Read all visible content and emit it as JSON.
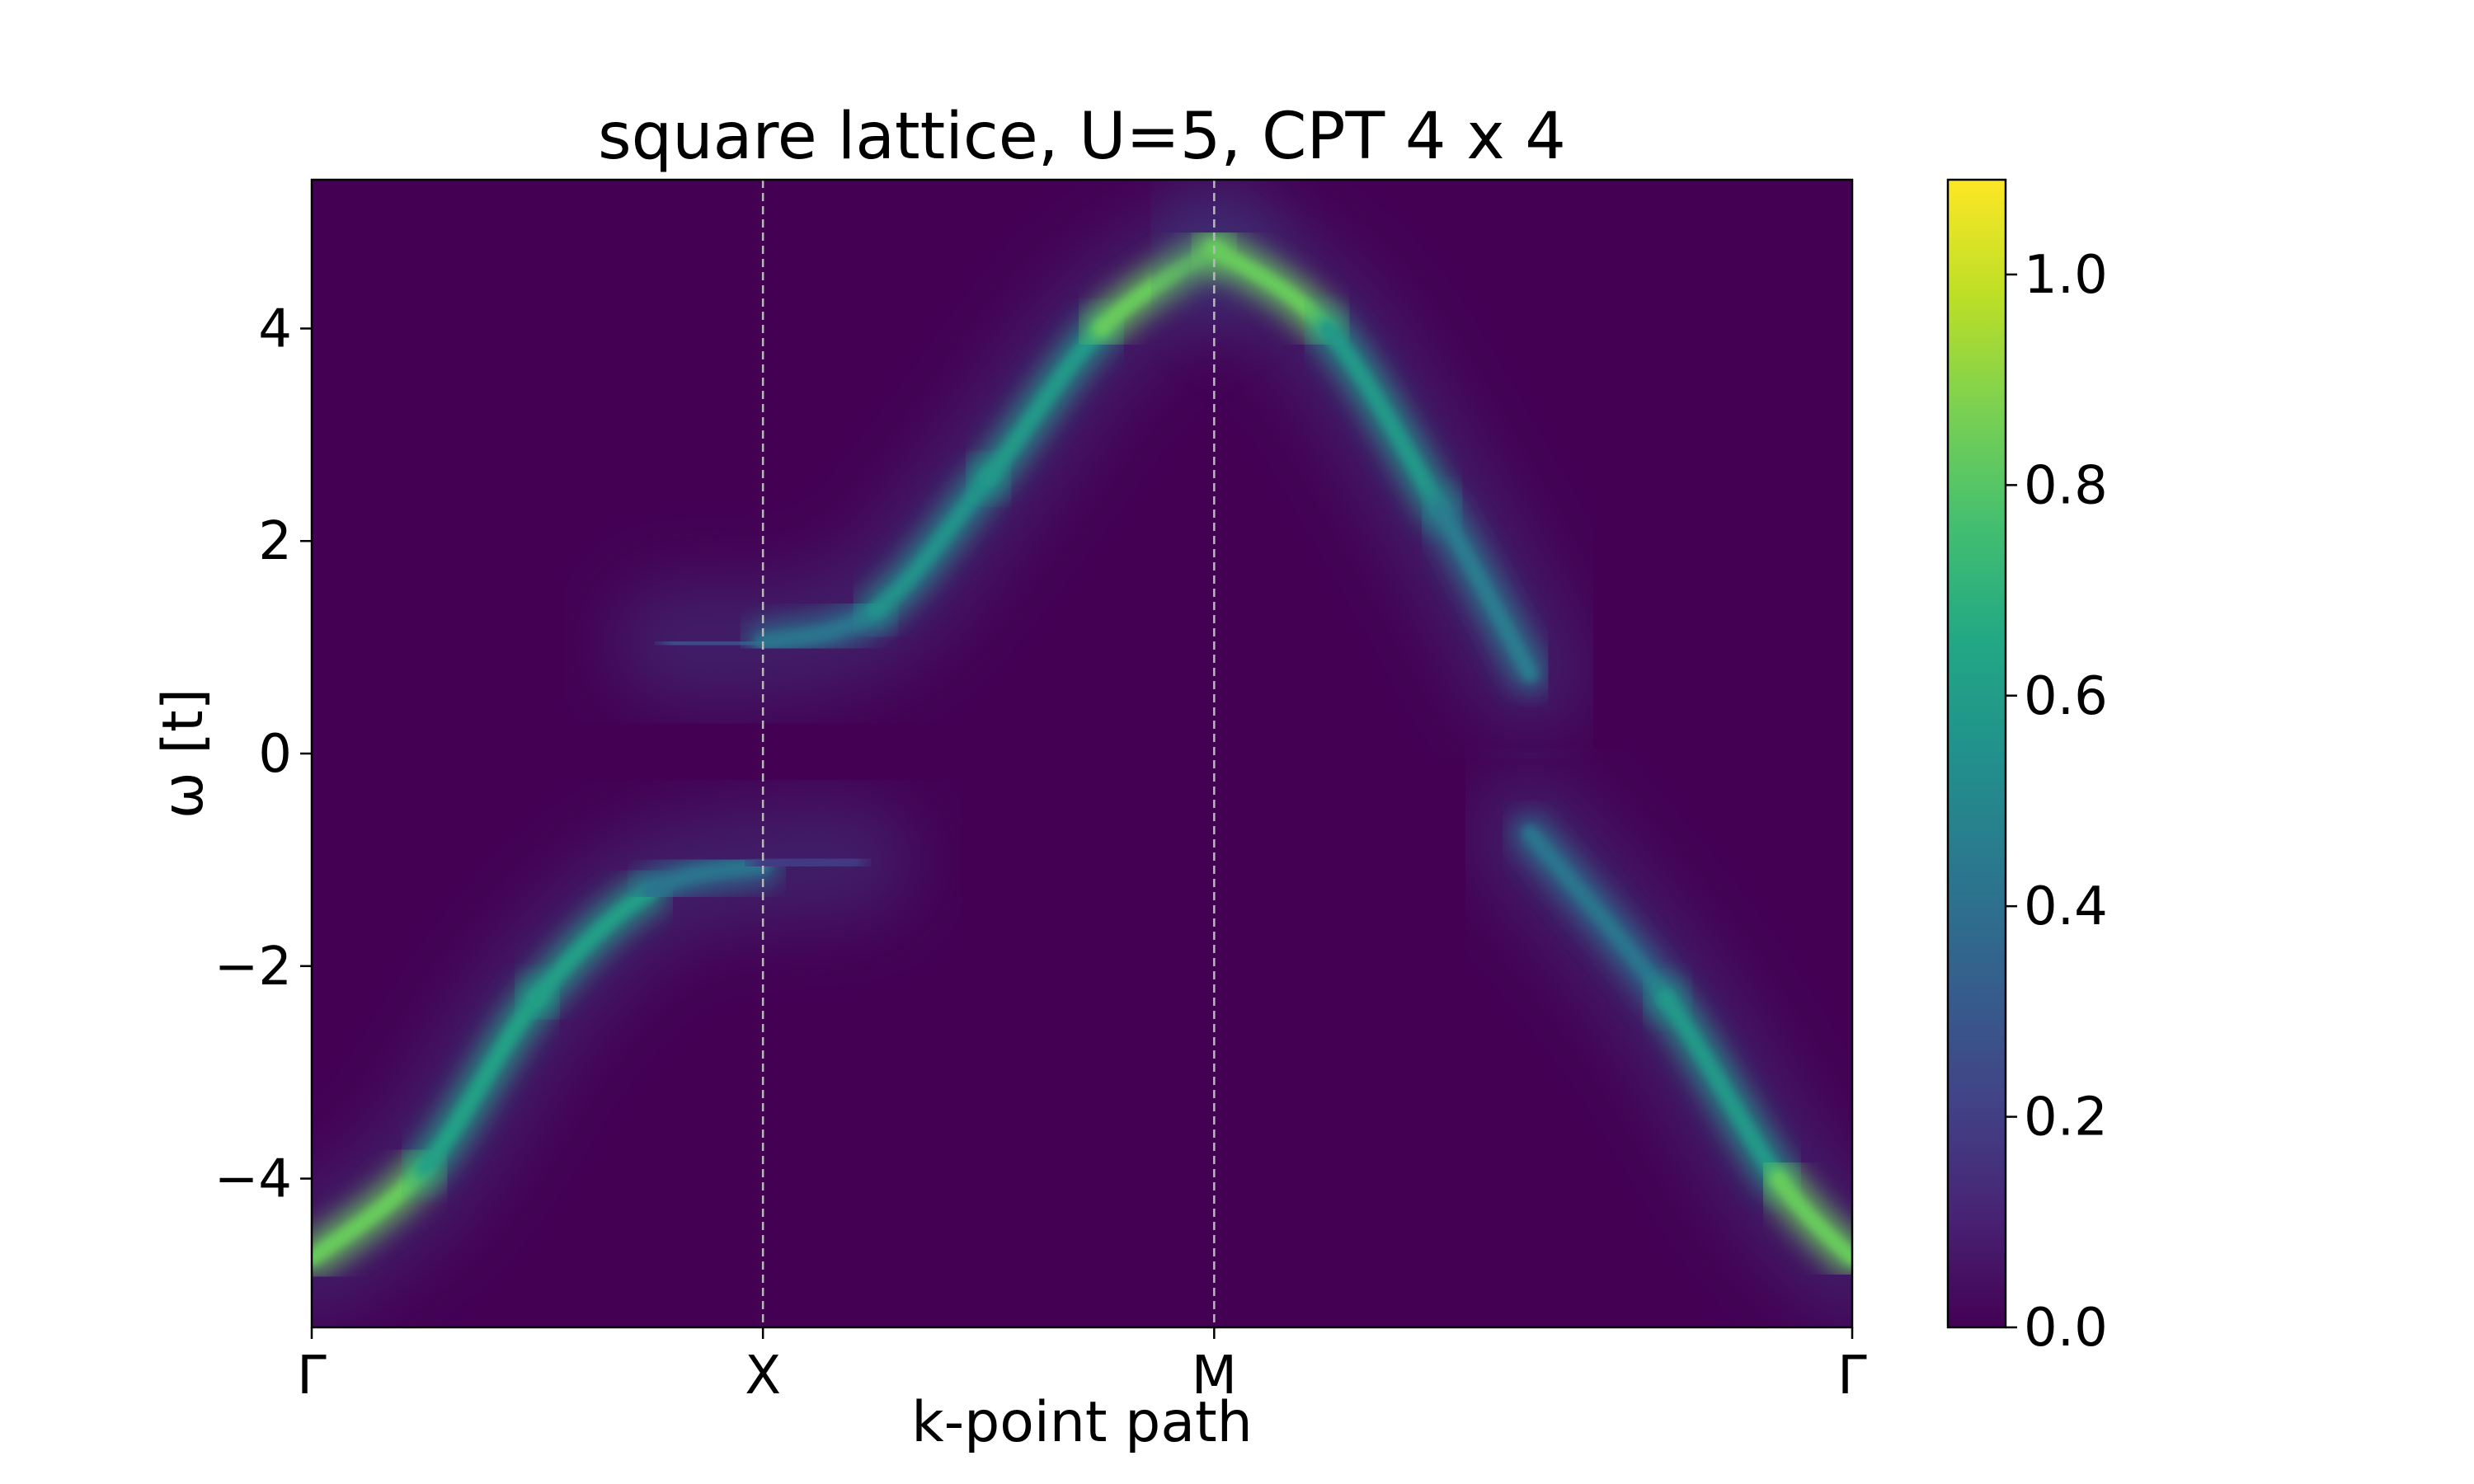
{
  "chart_data": {
    "type": "heatmap",
    "title": "square lattice, U=5, CPT 4 x 4",
    "xlabel": "k-point path",
    "ylabel": "ω [t]",
    "x_ticks": [
      {
        "label": "Γ",
        "pos": 0
      },
      {
        "label": "X",
        "pos": 1
      },
      {
        "label": "M",
        "pos": 2
      },
      {
        "label": "Γ",
        "pos": 3.414
      }
    ],
    "xlim": [
      0,
      3.414
    ],
    "ylim": [
      -5.4,
      5.4
    ],
    "y_ticks": [
      -4,
      -2,
      0,
      2,
      4
    ],
    "colormap": "viridis",
    "colorbar": {
      "min": 0.0,
      "max": 1.09,
      "ticks": [
        0.0,
        0.2,
        0.4,
        0.6,
        0.8,
        1.0
      ]
    },
    "vertical_dashed_lines_at": [
      1,
      2
    ],
    "bands": [
      {
        "name": "",
        "k": [
          0,
          0.25,
          0.5,
          0.75,
          1.0,
          1.2
        ],
        "omega": [
          -4.75,
          -3.9,
          -2.3,
          -1.3,
          -1.05,
          -1.0
        ],
        "intensity": [
          1.05,
          0.62,
          0.62,
          0.6,
          0.25,
          0.12
        ]
      },
      {
        "name": "",
        "k": [
          0.8,
          1.0,
          1.25,
          1.5,
          1.75,
          2.0
        ],
        "omega": [
          1.05,
          1.05,
          1.35,
          2.6,
          4.0,
          4.75
        ],
        "intensity": [
          0.2,
          0.3,
          0.55,
          0.55,
          0.62,
          1.05
        ]
      },
      {
        "name": "",
        "k": [
          2.0,
          2.25,
          2.5,
          2.7
        ],
        "omega": [
          4.75,
          4.0,
          2.3,
          0.75
        ],
        "intensity": [
          1.05,
          0.62,
          0.55,
          0.35
        ]
      },
      {
        "name": "",
        "k": [
          2.7,
          3.0,
          3.25,
          3.414
        ],
        "omega": [
          -0.75,
          -2.3,
          -4.0,
          -4.75
        ],
        "intensity": [
          0.3,
          0.55,
          0.62,
          1.05
        ]
      }
    ],
    "grid": false,
    "legend": false
  }
}
